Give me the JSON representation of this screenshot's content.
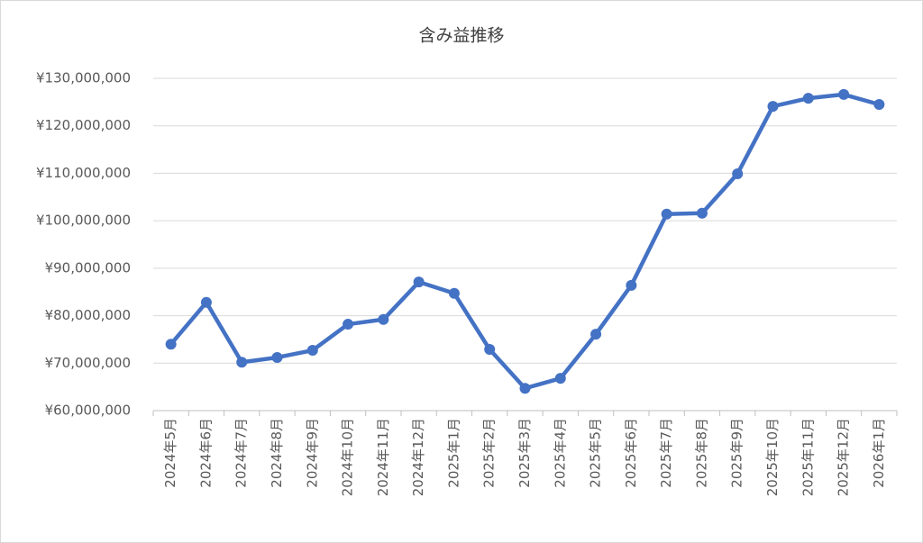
{
  "chart_data": {
    "type": "line",
    "title": "含み益推移",
    "categories": [
      "2024年5月",
      "2024年6月",
      "2024年7月",
      "2024年8月",
      "2024年9月",
      "2024年10月",
      "2024年11月",
      "2024年12月",
      "2025年1月",
      "2025年2月",
      "2025年3月",
      "2025年4月",
      "2025年5月",
      "2025年6月",
      "2025年7月",
      "2025年8月",
      "2025年9月",
      "2025年10月",
      "2025年11月",
      "2025年12月",
      "2026年1月"
    ],
    "series": [
      {
        "color": "#4472c4",
        "values": [
          74000000,
          82800000,
          70200000,
          71200000,
          72700000,
          78200000,
          79200000,
          87100000,
          84700000,
          72900000,
          64700000,
          66800000,
          76100000,
          86400000,
          101400000,
          101600000,
          109900000,
          124100000,
          125800000,
          126600000,
          124500000
        ]
      }
    ],
    "ylim": [
      60000000,
      130000000
    ],
    "yticks": [
      {
        "value": 60000000,
        "label": "¥60,000,000"
      },
      {
        "value": 70000000,
        "label": "¥70,000,000"
      },
      {
        "value": 80000000,
        "label": "¥80,000,000"
      },
      {
        "value": 90000000,
        "label": "¥90,000,000"
      },
      {
        "value": 100000000,
        "label": "¥100,000,000"
      },
      {
        "value": 110000000,
        "label": "¥110,000,000"
      },
      {
        "value": 120000000,
        "label": "¥120,000,000"
      },
      {
        "value": 130000000,
        "label": "¥130,000,000"
      }
    ],
    "grid": true
  }
}
